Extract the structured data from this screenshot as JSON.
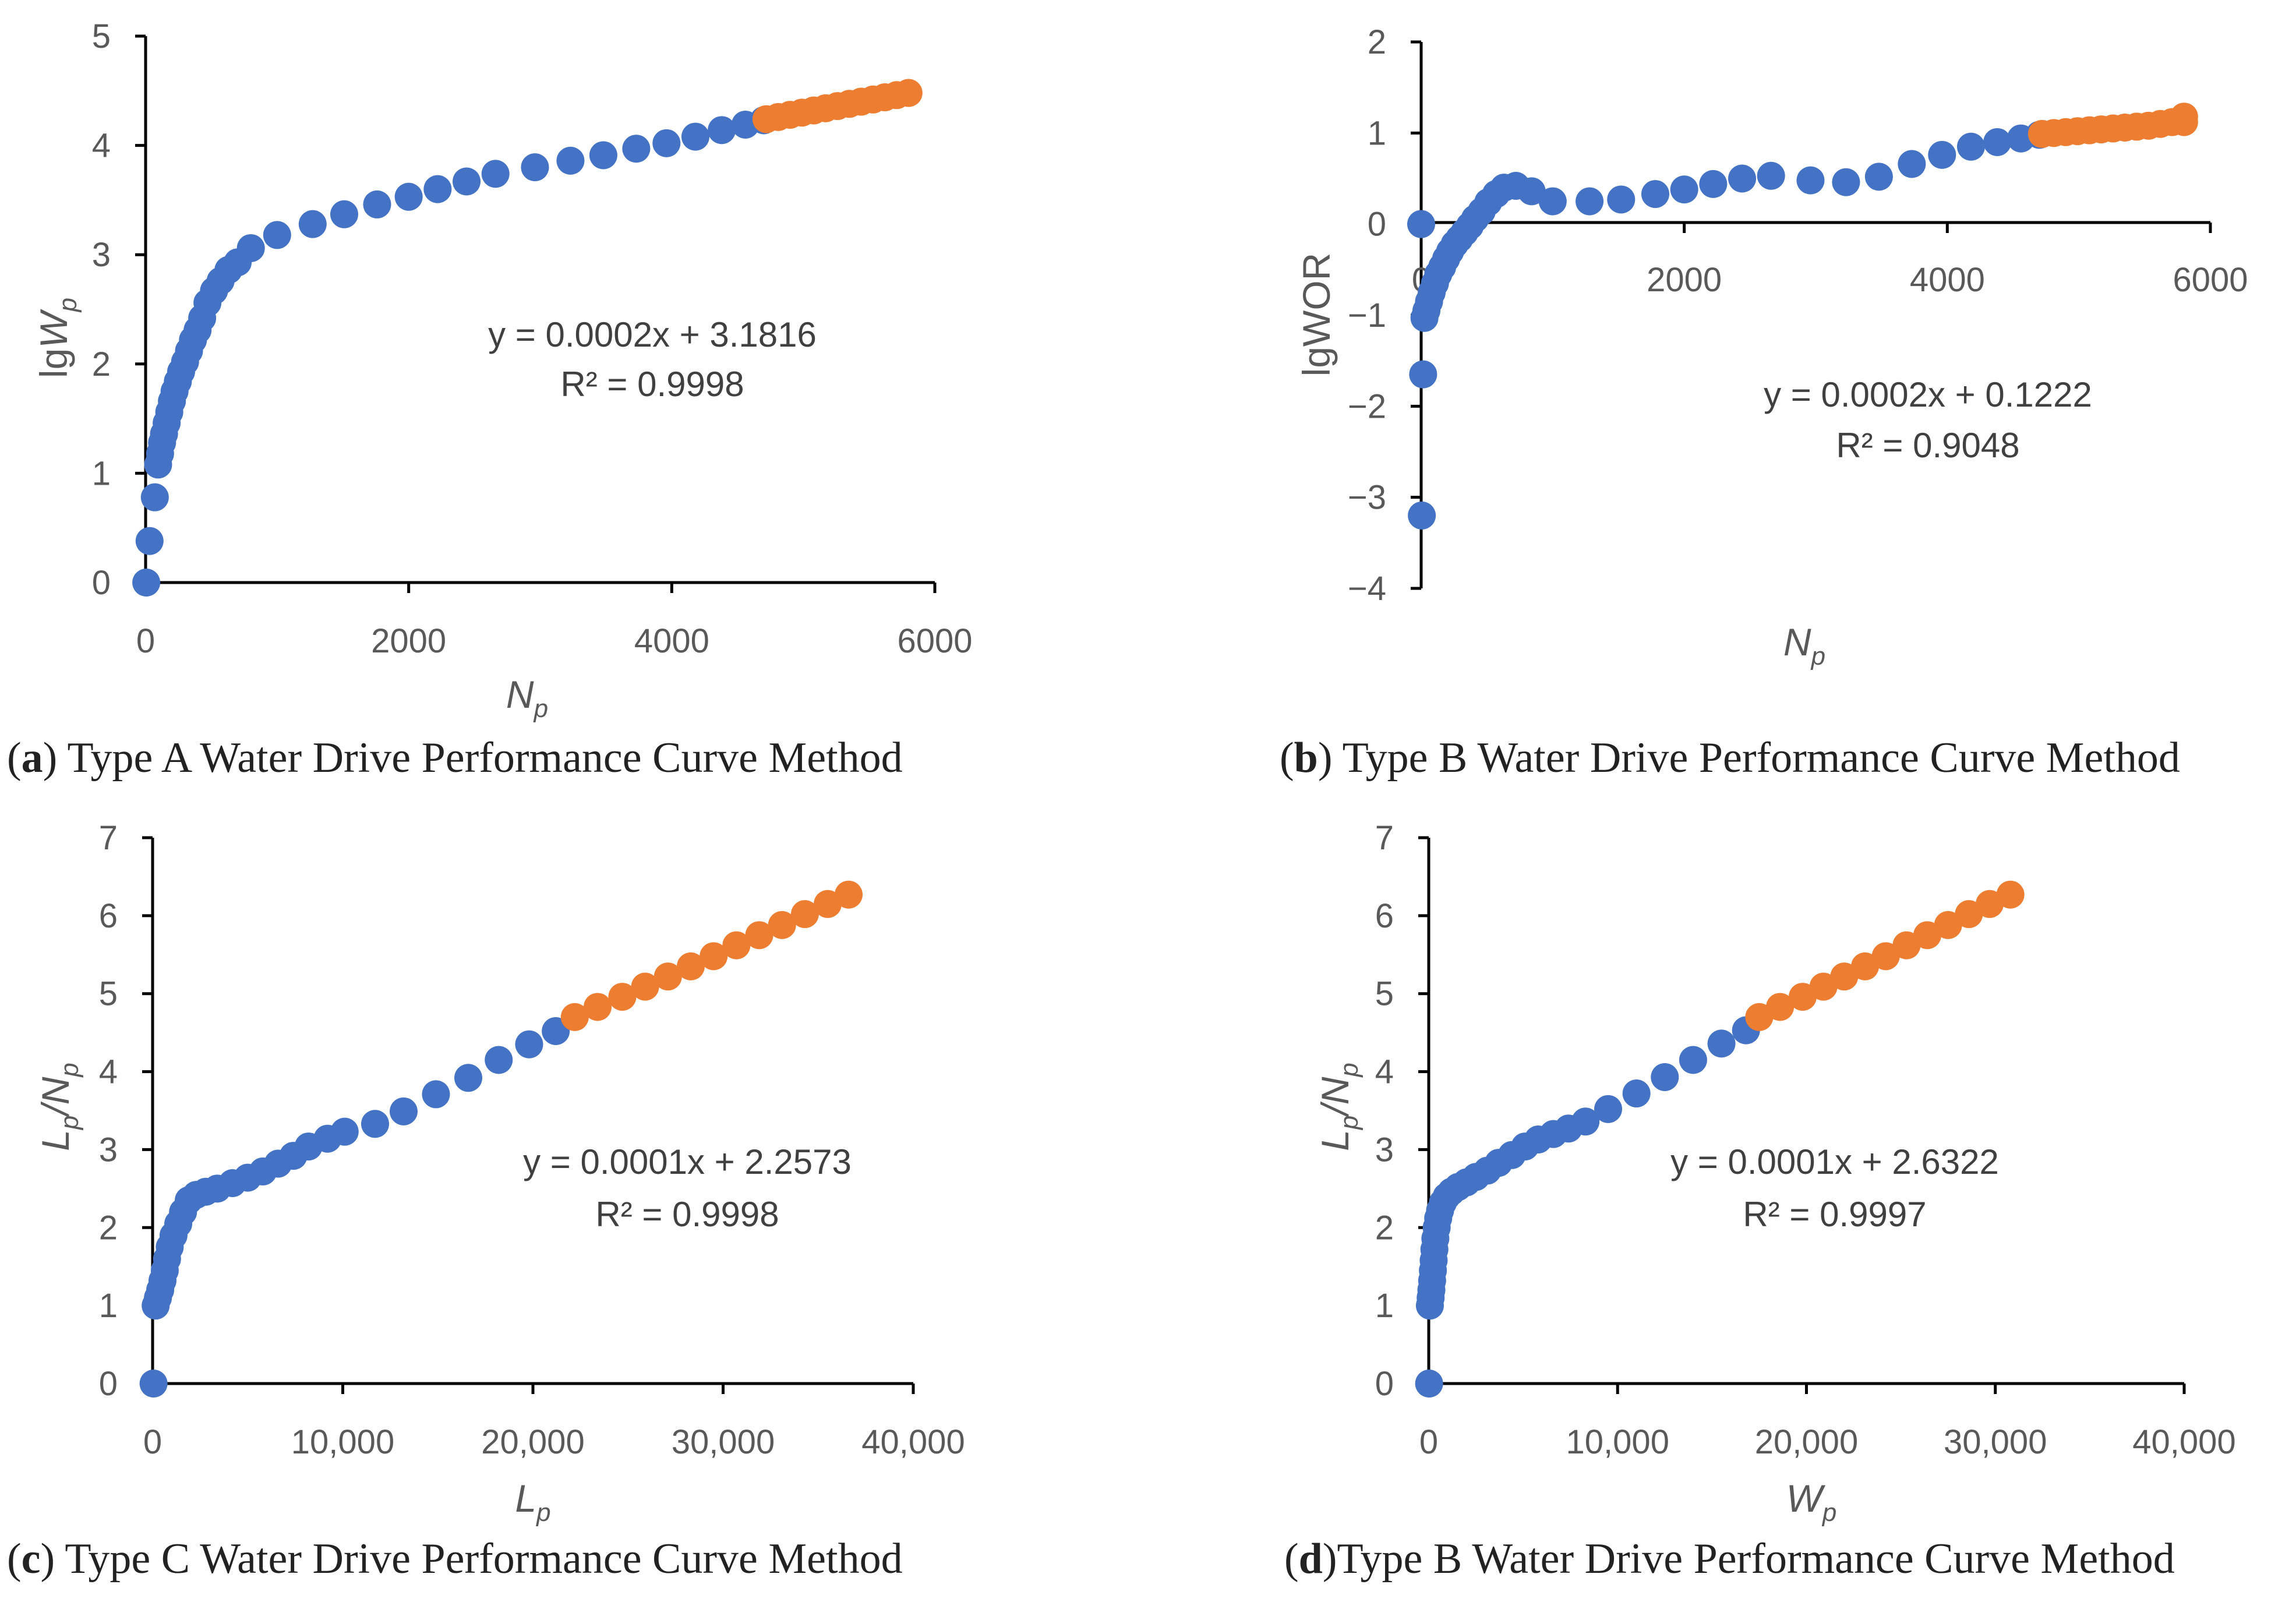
{
  "colors": {
    "fitted": "#4472C4",
    "forecast": "#ED7D31"
  },
  "panels": [
    {
      "id": "a",
      "caption_label": "a",
      "caption_text": " Type A Water Drive Performance Curve Method",
      "x_title_main": "N",
      "x_title_sub": "p",
      "y_title_main": "lgW",
      "y_title_sub": "p",
      "equation": "y = 0.0002x + 3.1816",
      "r2": "R² = 0.9998",
      "x_ticks": [
        "0",
        "2000",
        "4000",
        "6000"
      ],
      "y_ticks": [
        "0",
        "1",
        "2",
        "3",
        "4",
        "5"
      ]
    },
    {
      "id": "b",
      "caption_label": "b",
      "caption_text": " Type B Water Drive Performance Curve Method",
      "x_title_main": "N",
      "x_title_sub": "p",
      "y_title_main": "lgWOR",
      "y_title_sub": "",
      "equation": "y = 0.0002x + 0.1222",
      "r2": "R² = 0.9048",
      "x_ticks": [
        "0",
        "2000",
        "4000",
        "6000"
      ],
      "y_ticks": [
        "−4",
        "−3",
        "−2",
        "−1",
        "0",
        "1",
        "2"
      ]
    },
    {
      "id": "c",
      "caption_label": "c",
      "caption_text": " Type C Water Drive Performance Curve Method",
      "x_title_main": "L",
      "x_title_sub": "p",
      "y_title_main": "L",
      "y_title_sub": "p",
      "y_title_main2": "/N",
      "y_title_sub2": "p",
      "equation": "y = 0.0001x + 2.2573",
      "r2": "R² = 0.9998",
      "x_ticks": [
        "0",
        "10,000",
        "20,000",
        "30,000",
        "40,000"
      ],
      "y_ticks": [
        "0",
        "1",
        "2",
        "3",
        "4",
        "5",
        "6",
        "7"
      ]
    },
    {
      "id": "d",
      "caption_label": "d",
      "caption_text": "Type B Water Drive Performance Curve Method",
      "x_title_main": "W",
      "x_title_sub": "p",
      "y_title_main": "L",
      "y_title_sub": "p",
      "y_title_main2": "/N",
      "y_title_sub2": "p",
      "equation": "y = 0.0001x + 2.6322",
      "r2": "R² = 0.9997",
      "x_ticks": [
        "0",
        "10,000",
        "20,000",
        "30,000",
        "40,000"
      ],
      "y_ticks": [
        "0",
        "1",
        "2",
        "3",
        "4",
        "5",
        "6",
        "7"
      ]
    }
  ],
  "chart_data": [
    {
      "type": "scatter",
      "panel": "a",
      "title": "(a) Type A Water Drive Performance Curve Method",
      "xlabel": "Np",
      "ylabel": "lgWp",
      "xlim": [
        0,
        6000
      ],
      "ylim": [
        0,
        5
      ],
      "trendline": {
        "equation": "y = 0.0002x + 3.1816",
        "r2": 0.9998
      },
      "series": [
        {
          "name": "fitted",
          "color": "#4472C4",
          "x": [
            5,
            30,
            70,
            95,
            110,
            125,
            140,
            160,
            180,
            200,
            220,
            245,
            270,
            300,
            330,
            360,
            395,
            430,
            470,
            520,
            570,
            630,
            700,
            800,
            1000,
            1270,
            1510,
            1760,
            2000,
            2220,
            2440,
            2660,
            2960,
            3230,
            3480,
            3730,
            3960,
            4180,
            4380,
            4560,
            4700
          ],
          "y": [
            0,
            0.38,
            0.78,
            1.08,
            1.18,
            1.28,
            1.36,
            1.46,
            1.56,
            1.66,
            1.75,
            1.84,
            1.93,
            2.02,
            2.12,
            2.22,
            2.31,
            2.42,
            2.56,
            2.67,
            2.76,
            2.86,
            2.93,
            3.06,
            3.18,
            3.28,
            3.37,
            3.46,
            3.53,
            3.6,
            3.67,
            3.74,
            3.8,
            3.86,
            3.91,
            3.97,
            4.02,
            4.08,
            4.14,
            4.19,
            4.23
          ]
        },
        {
          "name": "forecast",
          "color": "#ED7D31",
          "x": [
            4720,
            4810,
            4900,
            4990,
            5080,
            5170,
            5260,
            5350,
            5440,
            5530,
            5620,
            5710,
            5800
          ],
          "y": [
            4.24,
            4.26,
            4.28,
            4.3,
            4.32,
            4.34,
            4.36,
            4.38,
            4.4,
            4.42,
            4.44,
            4.46,
            4.48
          ]
        }
      ]
    },
    {
      "type": "scatter",
      "panel": "b",
      "title": "(b) Type B Water Drive Performance Curve Method",
      "xlabel": "Np",
      "ylabel": "lgWOR",
      "xlim": [
        0,
        6000
      ],
      "ylim": [
        -4,
        2
      ],
      "trendline": {
        "equation": "y = 0.0002x + 0.1222",
        "r2": 0.9048
      },
      "series": [
        {
          "name": "fitted",
          "color": "#4472C4",
          "x": [
            0,
            5,
            15,
            25,
            40,
            60,
            80,
            105,
            130,
            160,
            190,
            220,
            255,
            290,
            330,
            370,
            410,
            460,
            510,
            570,
            630,
            720,
            840,
            1000,
            1280,
            1520,
            1780,
            2000,
            2220,
            2440,
            2660,
            2960,
            3230,
            3480,
            3730,
            3960,
            4180,
            4380,
            4560,
            4700
          ],
          "y": [
            0,
            -3.2,
            -1.65,
            -1.03,
            -0.95,
            -0.85,
            -0.75,
            -0.65,
            -0.55,
            -0.47,
            -0.38,
            -0.3,
            -0.22,
            -0.16,
            -0.09,
            -0.02,
            0.06,
            0.14,
            0.24,
            0.33,
            0.4,
            0.42,
            0.36,
            0.25,
            0.25,
            0.27,
            0.33,
            0.38,
            0.44,
            0.5,
            0.53,
            0.48,
            0.46,
            0.52,
            0.66,
            0.76,
            0.85,
            0.9,
            0.94,
            0.98
          ]
        },
        {
          "name": "forecast",
          "color": "#ED7D31",
          "x": [
            4720,
            4810,
            4900,
            4990,
            5080,
            5170,
            5260,
            5350,
            5440,
            5530,
            5620,
            5710,
            5800,
            5800
          ],
          "y": [
            0.99,
            1.0,
            1.01,
            1.02,
            1.03,
            1.04,
            1.05,
            1.06,
            1.07,
            1.08,
            1.1,
            1.12,
            1.18,
            1.12
          ]
        }
      ]
    },
    {
      "type": "scatter",
      "panel": "c",
      "title": "(c) Type C Water Drive Performance Curve Method",
      "xlabel": "Lp",
      "ylabel": "Lp/Np",
      "xlim": [
        0,
        40000
      ],
      "ylim": [
        0,
        7
      ],
      "trendline": {
        "equation": "y = 0.0001x + 2.2573",
        "r2": 0.9998
      },
      "series": [
        {
          "name": "fitted",
          "color": "#4472C4",
          "x": [
            50,
            160,
            280,
            400,
            520,
            640,
            760,
            900,
            1100,
            1350,
            1600,
            1900,
            2300,
            2800,
            3400,
            4200,
            5000,
            5800,
            6600,
            7400,
            8200,
            9200,
            10100,
            11700,
            13200,
            14900,
            16600,
            18200,
            19800,
            21200
          ],
          "y": [
            0,
            1.0,
            1.1,
            1.2,
            1.32,
            1.45,
            1.6,
            1.75,
            1.9,
            2.05,
            2.2,
            2.35,
            2.42,
            2.46,
            2.5,
            2.57,
            2.64,
            2.72,
            2.82,
            2.92,
            3.04,
            3.14,
            3.23,
            3.33,
            3.49,
            3.71,
            3.92,
            4.15,
            4.35,
            4.52
          ]
        },
        {
          "name": "forecast",
          "color": "#ED7D31",
          "x": [
            22200,
            23400,
            24700,
            25900,
            27100,
            28300,
            29500,
            30700,
            31900,
            33100,
            34300,
            35500,
            36600
          ],
          "y": [
            4.7,
            4.83,
            4.96,
            5.09,
            5.22,
            5.35,
            5.48,
            5.62,
            5.75,
            5.88,
            6.02,
            6.15,
            6.27
          ]
        }
      ]
    },
    {
      "type": "scatter",
      "panel": "d",
      "title": "(d)Type B Water Drive Performance Curve Method",
      "xlabel": "Wp",
      "ylabel": "Lp/Np",
      "xlim": [
        0,
        40000
      ],
      "ylim": [
        0,
        7
      ],
      "trendline": {
        "equation": "y = 0.0001x + 2.6322",
        "r2": 0.9997
      },
      "series": [
        {
          "name": "fitted",
          "color": "#4472C4",
          "x": [
            20,
            60,
            100,
            140,
            180,
            220,
            260,
            300,
            350,
            420,
            500,
            600,
            750,
            950,
            1200,
            1550,
            2000,
            2500,
            3100,
            3700,
            4400,
            5100,
            5800,
            6600,
            7400,
            8300,
            9500,
            11000,
            12500,
            14000,
            15500,
            16800
          ],
          "y": [
            0,
            1.0,
            1.1,
            1.2,
            1.32,
            1.45,
            1.58,
            1.72,
            1.86,
            2.0,
            2.12,
            2.22,
            2.32,
            2.4,
            2.46,
            2.52,
            2.58,
            2.65,
            2.73,
            2.83,
            2.93,
            3.04,
            3.13,
            3.2,
            3.27,
            3.36,
            3.52,
            3.72,
            3.93,
            4.15,
            4.36,
            4.53
          ]
        },
        {
          "name": "forecast",
          "color": "#ED7D31",
          "x": [
            17500,
            18600,
            19800,
            20900,
            22000,
            23100,
            24200,
            25300,
            26400,
            27500,
            28600,
            29700,
            30800
          ],
          "y": [
            4.7,
            4.83,
            4.96,
            5.09,
            5.22,
            5.35,
            5.48,
            5.62,
            5.75,
            5.88,
            6.02,
            6.15,
            6.27
          ]
        }
      ]
    }
  ]
}
